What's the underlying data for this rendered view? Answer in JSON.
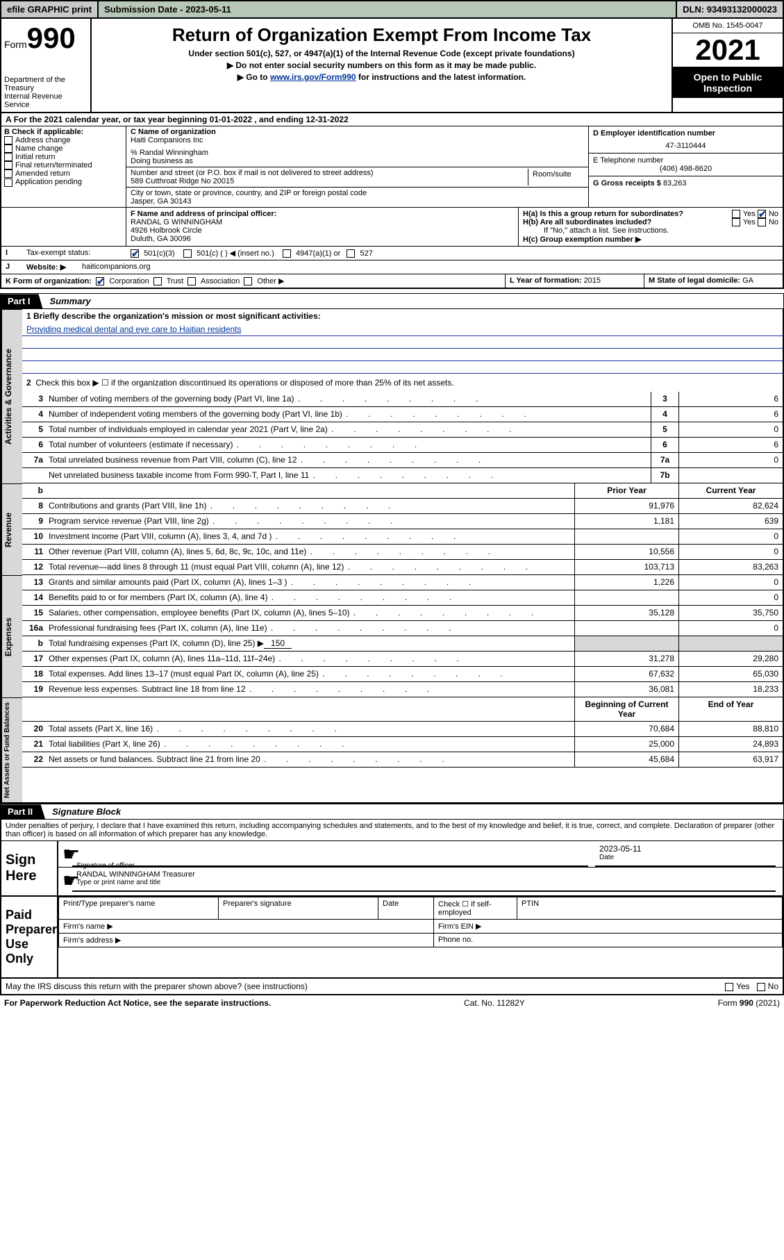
{
  "topbar": {
    "efile": "efile GRAPHIC print",
    "submission_label": "Submission Date - ",
    "submission_date": "2023-05-11",
    "dln_label": "DLN: ",
    "dln": "93493132000023"
  },
  "header": {
    "form_label": "Form",
    "form_num": "990",
    "dept": "Department of the Treasury",
    "irs": "Internal Revenue Service",
    "title": "Return of Organization Exempt From Income Tax",
    "subtitle": "Under section 501(c), 527, or 4947(a)(1) of the Internal Revenue Code (except private foundations)",
    "note1": "▶ Do not enter social security numbers on this form as it may be made public.",
    "note2_pre": "▶ Go to ",
    "note2_link": "www.irs.gov/Form990",
    "note2_post": " for instructions and the latest information.",
    "omb": "OMB No. 1545-0047",
    "year": "2021",
    "open": "Open to Public Inspection"
  },
  "A_taxyear": "For the 2021 calendar year, or tax year beginning 01-01-2022    , and ending 12-31-2022",
  "B": {
    "label": "B Check if applicable:",
    "items": [
      "Address change",
      "Name change",
      "Initial return",
      "Final return/terminated",
      "Amended return",
      "Application pending"
    ]
  },
  "C": {
    "name_label": "C Name of organization",
    "name": "Haiti Companions Inc",
    "care_of": "% Randal Winningham",
    "dba_label": "Doing business as",
    "street_label": "Number and street (or P.O. box if mail is not delivered to street address)",
    "room_label": "Room/suite",
    "street": "589 Cutthroat Ridge No 20015",
    "city_label": "City or town, state or province, country, and ZIP or foreign postal code",
    "city": "Jasper, GA  30143"
  },
  "D": {
    "label": "D Employer identification number",
    "ein": "47-3110444"
  },
  "E": {
    "label": "E Telephone number",
    "phone": "(406) 498-8620"
  },
  "G": {
    "label": "G Gross receipts $ ",
    "val": "83,263"
  },
  "F": {
    "label": "F  Name and address of principal officer:",
    "name": "RANDAL G WINNINGHAM",
    "addr1": "4926 Holbrook Circle",
    "addr2": "Duluth, GA  30096"
  },
  "H": {
    "a": "H(a)  Is this a group return for subordinates?",
    "b": "H(b)  Are all subordinates included?",
    "b_note": "If \"No,\" attach a list. See instructions.",
    "c": "H(c)  Group exemption number ▶",
    "yes": "Yes",
    "no": "No"
  },
  "I": {
    "label": "I",
    "text": "Tax-exempt status:",
    "opts": [
      "501(c)(3)",
      "501(c) (  ) ◀ (insert no.)",
      "4947(a)(1) or",
      "527"
    ]
  },
  "J": {
    "label": "J",
    "text": "Website: ▶",
    "site": "haiticompanions.org"
  },
  "K": {
    "label": "K Form of organization:",
    "opts": [
      "Corporation",
      "Trust",
      "Association",
      "Other ▶"
    ]
  },
  "L": {
    "label": "L Year of formation: ",
    "val": "2015"
  },
  "M": {
    "label": "M State of legal domicile: ",
    "val": "GA"
  },
  "part1": {
    "label": "Part I",
    "title": "Summary"
  },
  "mission": {
    "q": "1   Briefly describe the organization's mission or most significant activities:",
    "text": "Providing medical dental and eye care to Haitian residents"
  },
  "line2": "Check this box ▶ ☐  if the organization discontinued its operations or disposed of more than 25% of its net assets.",
  "lines_governance": [
    {
      "n": "3",
      "t": "Number of voting members of the governing body (Part VI, line 1a)",
      "k": "3",
      "v": "6"
    },
    {
      "n": "4",
      "t": "Number of independent voting members of the governing body (Part VI, line 1b)",
      "k": "4",
      "v": "6"
    },
    {
      "n": "5",
      "t": "Total number of individuals employed in calendar year 2021 (Part V, line 2a)",
      "k": "5",
      "v": "0"
    },
    {
      "n": "6",
      "t": "Total number of volunteers (estimate if necessary)",
      "k": "6",
      "v": "6"
    },
    {
      "n": "7a",
      "t": "Total unrelated business revenue from Part VIII, column (C), line 12",
      "k": "7a",
      "v": "0"
    },
    {
      "n": "",
      "t": "Net unrelated business taxable income from Form 990-T, Part I, line 11",
      "k": "7b",
      "v": ""
    }
  ],
  "colhdr": {
    "b": "b",
    "prior": "Prior Year",
    "current": "Current Year"
  },
  "revenue": [
    {
      "n": "8",
      "t": "Contributions and grants (Part VIII, line 1h)",
      "p": "91,976",
      "c": "82,624"
    },
    {
      "n": "9",
      "t": "Program service revenue (Part VIII, line 2g)",
      "p": "1,181",
      "c": "639"
    },
    {
      "n": "10",
      "t": "Investment income (Part VIII, column (A), lines 3, 4, and 7d )",
      "p": "",
      "c": "0"
    },
    {
      "n": "11",
      "t": "Other revenue (Part VIII, column (A), lines 5, 6d, 8c, 9c, 10c, and 11e)",
      "p": "10,556",
      "c": "0"
    },
    {
      "n": "12",
      "t": "Total revenue—add lines 8 through 11 (must equal Part VIII, column (A), line 12)",
      "p": "103,713",
      "c": "83,263"
    }
  ],
  "expenses": [
    {
      "n": "13",
      "t": "Grants and similar amounts paid (Part IX, column (A), lines 1–3 )",
      "p": "1,226",
      "c": "0"
    },
    {
      "n": "14",
      "t": "Benefits paid to or for members (Part IX, column (A), line 4)",
      "p": "",
      "c": "0"
    },
    {
      "n": "15",
      "t": "Salaries, other compensation, employee benefits (Part IX, column (A), lines 5–10)",
      "p": "35,128",
      "c": "35,750"
    },
    {
      "n": "16a",
      "t": "Professional fundraising fees (Part IX, column (A), line 11e)",
      "p": "",
      "c": "0"
    }
  ],
  "line16b": {
    "n": "b",
    "t": "Total fundraising expenses (Part IX, column (D), line 25) ▶",
    "v": "150"
  },
  "expenses2": [
    {
      "n": "17",
      "t": "Other expenses (Part IX, column (A), lines 11a–11d, 11f–24e)",
      "p": "31,278",
      "c": "29,280"
    },
    {
      "n": "18",
      "t": "Total expenses. Add lines 13–17 (must equal Part IX, column (A), line 25)",
      "p": "67,632",
      "c": "65,030"
    },
    {
      "n": "19",
      "t": "Revenue less expenses. Subtract line 18 from line 12",
      "p": "36,081",
      "c": "18,233"
    }
  ],
  "netassets_hdr": {
    "begin": "Beginning of Current Year",
    "end": "End of Year"
  },
  "netassets": [
    {
      "n": "20",
      "t": "Total assets (Part X, line 16)",
      "p": "70,684",
      "c": "88,810"
    },
    {
      "n": "21",
      "t": "Total liabilities (Part X, line 26)",
      "p": "25,000",
      "c": "24,893"
    },
    {
      "n": "22",
      "t": "Net assets or fund balances. Subtract line 21 from line 20",
      "p": "45,684",
      "c": "63,917"
    }
  ],
  "part2": {
    "label": "Part II",
    "title": "Signature Block"
  },
  "perjury": "Under penalties of perjury, I declare that I have examined this return, including accompanying schedules and statements, and to the best of my knowledge and belief, it is true, correct, and complete. Declaration of preparer (other than officer) is based on all information of which preparer has any knowledge.",
  "sign": {
    "here": "Sign Here",
    "sig_officer": "Signature of officer",
    "date_label": "Date",
    "date": "2023-05-11",
    "name": "RANDAL WINNINGHAM Treasurer",
    "type_label": "Type or print name and title"
  },
  "preparer": {
    "label": "Paid Preparer Use Only",
    "cols": [
      "Print/Type preparer's name",
      "Preparer's signature",
      "Date"
    ],
    "check": "Check ☐ if self-employed",
    "ptin": "PTIN",
    "firm_name": "Firm's name   ▶",
    "firm_ein": "Firm's EIN ▶",
    "firm_addr": "Firm's address ▶",
    "phone": "Phone no."
  },
  "discuss": "May the IRS discuss this return with the preparer shown above? (see instructions)",
  "footer": {
    "left": "For Paperwork Reduction Act Notice, see the separate instructions.",
    "mid": "Cat. No. 11282Y",
    "right": "Form 990 (2021)"
  },
  "vlabels": {
    "gov": "Activities & Governance",
    "rev": "Revenue",
    "exp": "Expenses",
    "net": "Net Assets or Fund Balances"
  }
}
